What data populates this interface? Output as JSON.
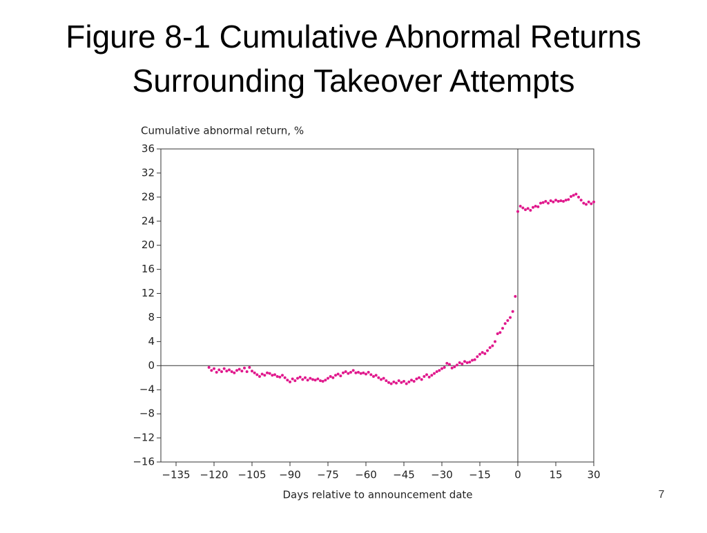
{
  "slide_title": [
    "Figure 8-1 Cumulative Abnormal Returns",
    "Surrounding Takeover Attempts"
  ],
  "page_number": "7",
  "chart_data": {
    "type": "scatter",
    "y_label": "Cumulative abnormal return, %",
    "x_label": "Days relative to announcement date",
    "color": "#e0188c",
    "xlim": [
      -141,
      30
    ],
    "ylim": [
      -16,
      36
    ],
    "xticks": [
      {
        "value": -135,
        "label": "−135"
      },
      {
        "value": -120,
        "label": "−120"
      },
      {
        "value": -105,
        "label": "−105"
      },
      {
        "value": -90,
        "label": "−90"
      },
      {
        "value": -75,
        "label": "−75"
      },
      {
        "value": -60,
        "label": "−60"
      },
      {
        "value": -45,
        "label": "−45"
      },
      {
        "value": -30,
        "label": "−30"
      },
      {
        "value": -15,
        "label": "−15"
      },
      0,
      15,
      30
    ],
    "yticks": [
      {
        "value": -16,
        "label": "−16"
      },
      {
        "value": -12,
        "label": "−12"
      },
      {
        "value": -8,
        "label": "−8"
      },
      {
        "value": -4,
        "label": "−4"
      },
      0,
      4,
      8,
      12,
      16,
      20,
      24,
      28,
      32,
      36
    ],
    "x": [
      -122,
      -121,
      -120,
      -119,
      -118,
      -117,
      -116,
      -115,
      -114,
      -113,
      -112,
      -111,
      -110,
      -109,
      -108,
      -107,
      -106,
      -105,
      -104,
      -103,
      -102,
      -101,
      -100,
      -99,
      -98,
      -97,
      -96,
      -95,
      -94,
      -93,
      -92,
      -91,
      -90,
      -89,
      -88,
      -87,
      -86,
      -85,
      -84,
      -83,
      -82,
      -81,
      -80,
      -79,
      -78,
      -77,
      -76,
      -75,
      -74,
      -73,
      -72,
      -71,
      -70,
      -69,
      -68,
      -67,
      -66,
      -65,
      -64,
      -63,
      -62,
      -61,
      -60,
      -59,
      -58,
      -57,
      -56,
      -55,
      -54,
      -53,
      -52,
      -51,
      -50,
      -49,
      -48,
      -47,
      -46,
      -45,
      -44,
      -43,
      -42,
      -41,
      -40,
      -39,
      -38,
      -37,
      -36,
      -35,
      -34,
      -33,
      -32,
      -31,
      -30,
      -29,
      -28,
      -27,
      -26,
      -25,
      -24,
      -23,
      -22,
      -21,
      -20,
      -19,
      -18,
      -17,
      -16,
      -15,
      -14,
      -13,
      -12,
      -11,
      -10,
      -9,
      -8,
      -7,
      -6,
      -5,
      -4,
      -3,
      -2,
      -1,
      0,
      1,
      2,
      3,
      4,
      5,
      6,
      7,
      8,
      9,
      10,
      11,
      12,
      13,
      14,
      15,
      16,
      17,
      18,
      19,
      20,
      21,
      22,
      23,
      24,
      25,
      26,
      27,
      28,
      29,
      30
    ],
    "values": [
      -0.3,
      -0.8,
      -0.5,
      -1.1,
      -0.7,
      -1.0,
      -0.5,
      -0.9,
      -0.7,
      -1.0,
      -1.2,
      -0.8,
      -0.6,
      -0.9,
      -0.4,
      -1.0,
      -0.3,
      -0.9,
      -1.2,
      -1.5,
      -1.8,
      -1.4,
      -1.6,
      -1.2,
      -1.3,
      -1.6,
      -1.5,
      -1.8,
      -1.9,
      -1.6,
      -2.0,
      -2.4,
      -2.7,
      -2.2,
      -2.5,
      -2.1,
      -1.9,
      -2.3,
      -2.0,
      -2.4,
      -2.1,
      -2.3,
      -2.4,
      -2.2,
      -2.5,
      -2.6,
      -2.4,
      -2.1,
      -1.8,
      -2.0,
      -1.6,
      -1.4,
      -1.7,
      -1.2,
      -1.0,
      -1.3,
      -1.1,
      -0.8,
      -1.2,
      -1.1,
      -1.3,
      -1.2,
      -1.4,
      -1.1,
      -1.5,
      -1.8,
      -1.6,
      -2.0,
      -2.3,
      -2.1,
      -2.5,
      -2.8,
      -3.0,
      -2.7,
      -2.9,
      -2.5,
      -2.8,
      -2.6,
      -3.0,
      -2.7,
      -2.4,
      -2.6,
      -2.2,
      -2.0,
      -2.3,
      -1.8,
      -1.5,
      -1.9,
      -1.6,
      -1.3,
      -1.0,
      -0.8,
      -0.5,
      -0.3,
      0.4,
      0.2,
      -0.4,
      -0.2,
      0.1,
      0.5,
      0.3,
      0.7,
      0.5,
      0.6,
      0.9,
      1.0,
      1.5,
      1.9,
      2.2,
      2.0,
      2.5,
      3.0,
      3.3,
      4.0,
      5.3,
      5.5,
      6.2,
      7.0,
      7.5,
      8.0,
      9.0,
      11.5,
      25.6,
      26.5,
      26.2,
      25.9,
      26.1,
      25.8,
      26.3,
      26.5,
      26.4,
      27.0,
      27.1,
      27.3,
      27.0,
      27.4,
      27.2,
      27.5,
      27.3,
      27.4,
      27.3,
      27.5,
      27.6,
      28.1,
      28.3,
      28.5,
      28.0,
      27.5,
      27.0,
      26.8,
      27.2,
      26.9,
      27.2
    ]
  }
}
